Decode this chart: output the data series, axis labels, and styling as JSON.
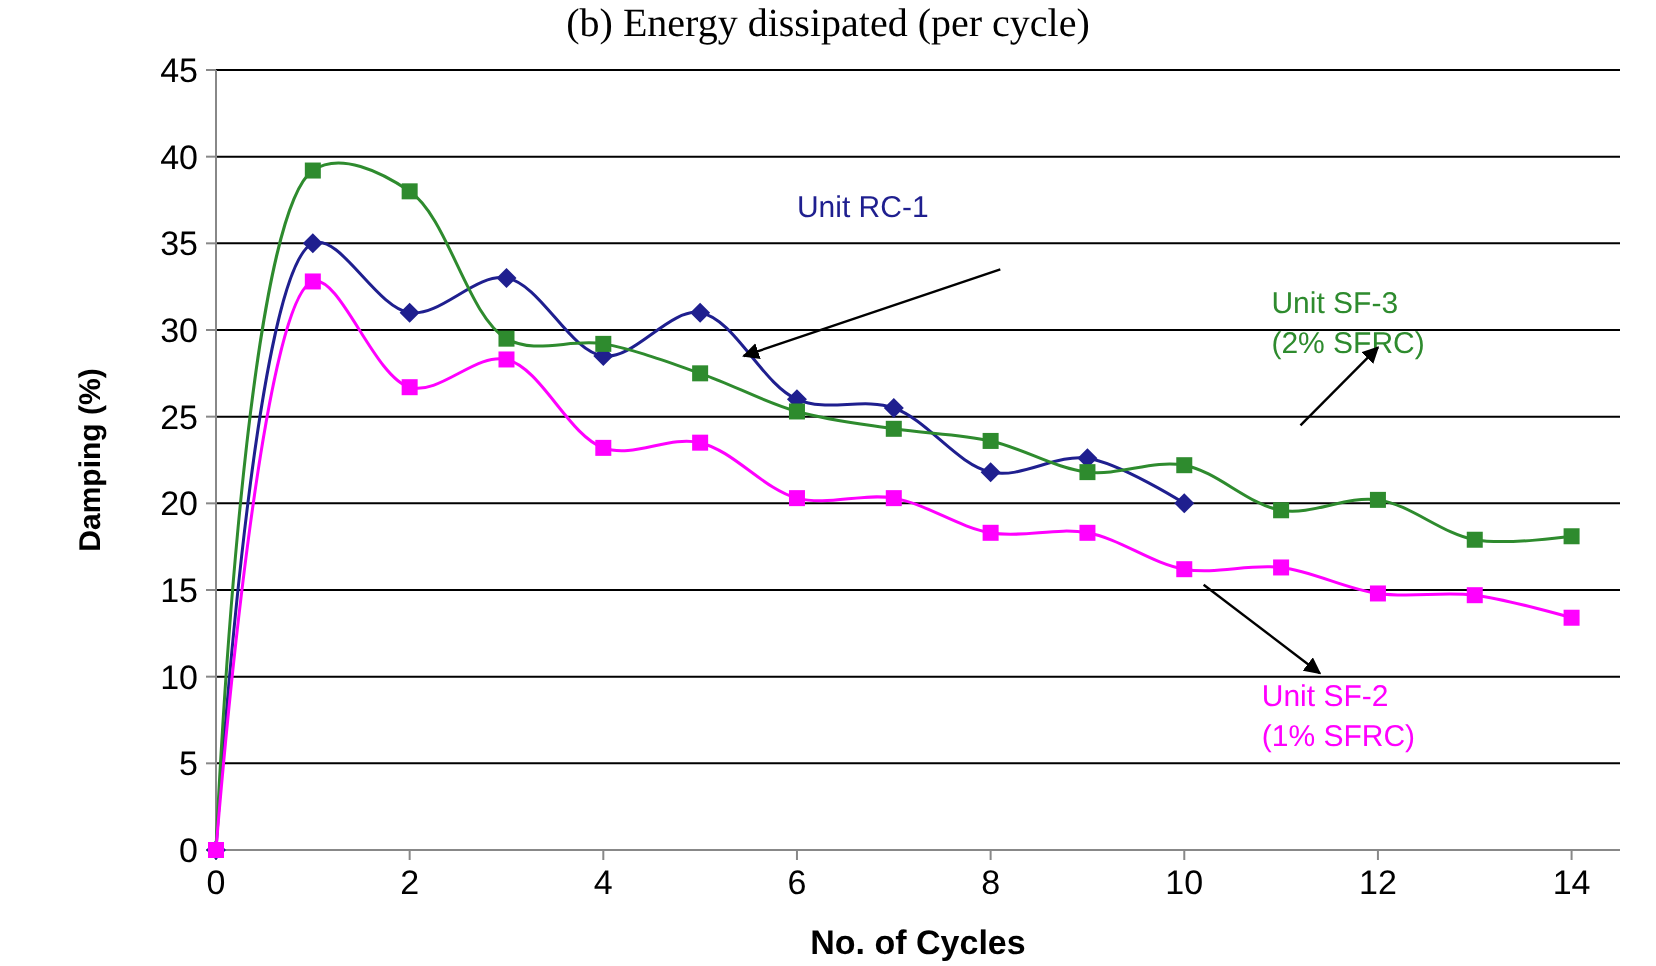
{
  "chart_data": {
    "type": "line",
    "title": "(b) Energy dissipated (per cycle)",
    "xlabel": "No. of Cycles",
    "ylabel": "Damping (%)",
    "xlim": [
      0,
      14.5
    ],
    "xticks": [
      0,
      2,
      4,
      6,
      8,
      10,
      12,
      14
    ],
    "ylim": [
      0,
      45
    ],
    "yticks": [
      0,
      5,
      10,
      15,
      20,
      25,
      30,
      35,
      40,
      45
    ],
    "grid": "y",
    "series": [
      {
        "name": "Unit RC-1",
        "color": "#1f1f8f",
        "marker": "diamond",
        "x": [
          0,
          1,
          2,
          3,
          4,
          5,
          6,
          7,
          8,
          9,
          10
        ],
        "values": [
          0,
          35,
          31,
          33,
          28.5,
          31,
          26,
          25.5,
          21.8,
          22.6,
          20
        ]
      },
      {
        "name": "Unit SF-3 (2% SFRC)",
        "color": "#2e8b2e",
        "marker": "square",
        "x": [
          0,
          1,
          2,
          3,
          4,
          5,
          6,
          7,
          8,
          9,
          10,
          11,
          12,
          13,
          14
        ],
        "values": [
          0,
          39.2,
          38,
          29.5,
          29.2,
          27.5,
          25.3,
          24.3,
          23.6,
          21.8,
          22.2,
          19.6,
          20.2,
          17.9,
          18.1
        ]
      },
      {
        "name": "Unit SF-2 (1% SFRC)",
        "color": "#ff00ff",
        "marker": "square",
        "x": [
          0,
          1,
          2,
          3,
          4,
          5,
          6,
          7,
          8,
          9,
          10,
          11,
          12,
          13,
          14
        ],
        "values": [
          0,
          32.8,
          26.7,
          28.3,
          23.2,
          23.5,
          20.3,
          20.3,
          18.3,
          18.3,
          16.2,
          16.3,
          14.8,
          14.7,
          13.4
        ]
      }
    ]
  }
}
